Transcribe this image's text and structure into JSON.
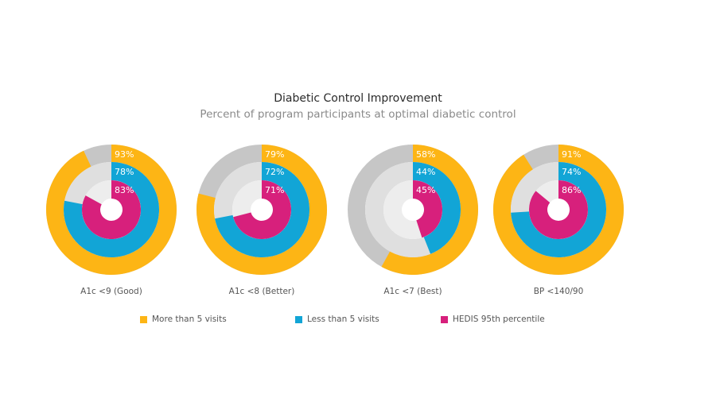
{
  "title": "Diabetic Control Improvement",
  "subtitle": "Percent of program participants at optimal diabetic control",
  "chart_data": {
    "type": "donut",
    "title": "Diabetic Control Improvement",
    "subtitle": "Percent of program participants at optimal diabetic control",
    "categories": [
      "A1c <9 (Good)",
      "A1c <8 (Better)",
      "A1c <7 (Best)",
      "BP <140/90"
    ],
    "series": [
      {
        "name": "More than 5 visits",
        "color": "#FDB515",
        "track": "#C6C6C6",
        "values": [
          93,
          79,
          58,
          91
        ]
      },
      {
        "name": "Less than 5 visits",
        "color": "#12A5D6",
        "track": "#DFDFDF",
        "values": [
          78,
          72,
          44,
          74
        ]
      },
      {
        "name": "HEDIS 95th percentile",
        "color": "#D7207C",
        "track": "#EDEDED",
        "values": [
          83,
          71,
          45,
          86
        ]
      }
    ],
    "value_suffix": "%",
    "legend_position": "bottom"
  }
}
